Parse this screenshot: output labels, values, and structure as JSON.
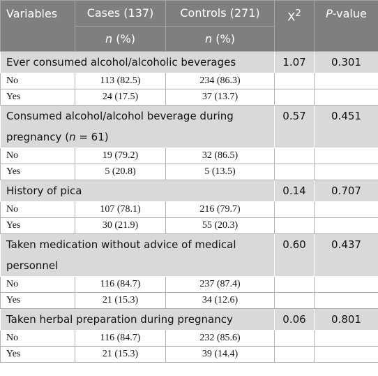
{
  "header": {
    "variables": "Variables",
    "cases": "Cases (137)",
    "controls": "Controls (271)",
    "chi": [
      {
        "text": "X",
        "italic": false
      },
      {
        "text": "2",
        "sup": true
      }
    ],
    "p_value": [
      {
        "text": "P",
        "italic": true
      },
      {
        "text": "-value",
        "italic": false
      }
    ],
    "unit": [
      {
        "text": "n",
        "italic": true
      },
      {
        "text": " (%)",
        "italic": false
      }
    ]
  },
  "groups": [
    {
      "label": [
        {
          "text": "Ever consumed alcohol/alcoholic beverages",
          "italic": false
        }
      ],
      "chi2": "1.07",
      "p": "0.301",
      "rows": [
        [
          "No",
          "113 (82.5)",
          "234 (86.3)"
        ],
        [
          "Yes",
          "24 (17.5)",
          "37 (13.7)"
        ]
      ]
    },
    {
      "label": [
        {
          "text": "Consumed alcohol/alcohol beverage during pregnancy (",
          "italic": false
        },
        {
          "text": "n",
          "italic": true
        },
        {
          "text": " = 61)",
          "italic": false
        }
      ],
      "chi2": "0.57",
      "p": "0.451",
      "rows": [
        [
          "No",
          "19 (79.2)",
          "32 (86.5)"
        ],
        [
          "Yes",
          "5 (20.8)",
          "5 (13.5)"
        ]
      ]
    },
    {
      "label": [
        {
          "text": "History of pica",
          "italic": false
        }
      ],
      "chi2": "0.14",
      "p": "0.707",
      "rows": [
        [
          "No",
          "107 (78.1)",
          "216 (79.7)"
        ],
        [
          "Yes",
          "30 (21.9)",
          "55 (20.3)"
        ]
      ]
    },
    {
      "label": [
        {
          "text": "Taken medication without advice of medical personnel",
          "italic": false
        }
      ],
      "chi2": "0.60",
      "p": "0.437",
      "rows": [
        [
          "No",
          "116 (84.7)",
          "237 (87.4)"
        ],
        [
          "Yes",
          "21 (15.3)",
          "34 (12.6)"
        ]
      ]
    },
    {
      "label": [
        {
          "text": "Taken herbal preparation during pregnancy",
          "italic": false
        }
      ],
      "chi2": "0.06",
      "p": "0.801",
      "rows": [
        [
          "No",
          "116 (84.7)",
          "232 (85.6)"
        ],
        [
          "Yes",
          "21 (15.3)",
          "39 (14.4)"
        ]
      ]
    }
  ]
}
